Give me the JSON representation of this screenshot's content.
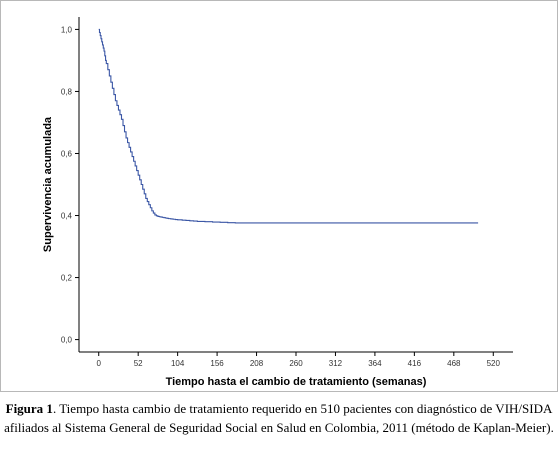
{
  "chart_data": {
    "type": "line",
    "title": "",
    "xlabel": "Tiempo hasta el cambio de tratamiento (semanas)",
    "ylabel": "Supervivencia acumulada",
    "x_ticks": [
      "0",
      "52",
      "104",
      "156",
      "208",
      "260",
      "312",
      "364",
      "416",
      "468",
      "520"
    ],
    "y_ticks": [
      "0,0",
      "0,2",
      "0,4",
      "0,6",
      "0,8",
      "1,0"
    ],
    "xlim": [
      -26,
      546
    ],
    "ylim": [
      -0.04,
      1.04
    ],
    "grid": false,
    "line_color": "#3a56a5",
    "series": [
      {
        "step": true,
        "x": [
          0,
          1,
          2,
          3,
          4,
          5,
          6,
          7,
          8,
          9,
          10,
          12,
          14,
          16,
          18,
          20,
          22,
          24,
          26,
          28,
          30,
          32,
          34,
          36,
          38,
          40,
          42,
          44,
          46,
          48,
          50,
          52,
          54,
          56,
          58,
          60,
          62,
          64,
          66,
          68,
          70,
          72,
          74,
          76,
          78,
          80,
          82,
          84,
          86,
          88,
          90,
          92,
          95,
          98,
          101,
          104,
          110,
          115,
          120,
          125,
          130,
          140,
          150,
          160,
          170,
          180,
          500
        ],
        "y": [
          1.0,
          0.99,
          0.98,
          0.97,
          0.96,
          0.95,
          0.94,
          0.93,
          0.915,
          0.9,
          0.89,
          0.87,
          0.85,
          0.83,
          0.81,
          0.79,
          0.77,
          0.755,
          0.74,
          0.725,
          0.71,
          0.69,
          0.67,
          0.65,
          0.635,
          0.62,
          0.605,
          0.59,
          0.575,
          0.56,
          0.545,
          0.53,
          0.515,
          0.5,
          0.485,
          0.47,
          0.455,
          0.445,
          0.435,
          0.425,
          0.415,
          0.408,
          0.402,
          0.399,
          0.397,
          0.396,
          0.395,
          0.394,
          0.393,
          0.392,
          0.391,
          0.39,
          0.389,
          0.388,
          0.387,
          0.386,
          0.385,
          0.384,
          0.383,
          0.382,
          0.381,
          0.38,
          0.379,
          0.378,
          0.377,
          0.376,
          0.376
        ]
      }
    ]
  },
  "caption": {
    "label": "Figura 1",
    "text": ". Tiempo hasta cambio de tratamiento requerido en 510 pacientes con diagnóstico de VIH/SIDA afiliados al Sistema General de Seguridad Social en Salud en Colombia, 2011 (método de Kaplan-Meier)."
  }
}
